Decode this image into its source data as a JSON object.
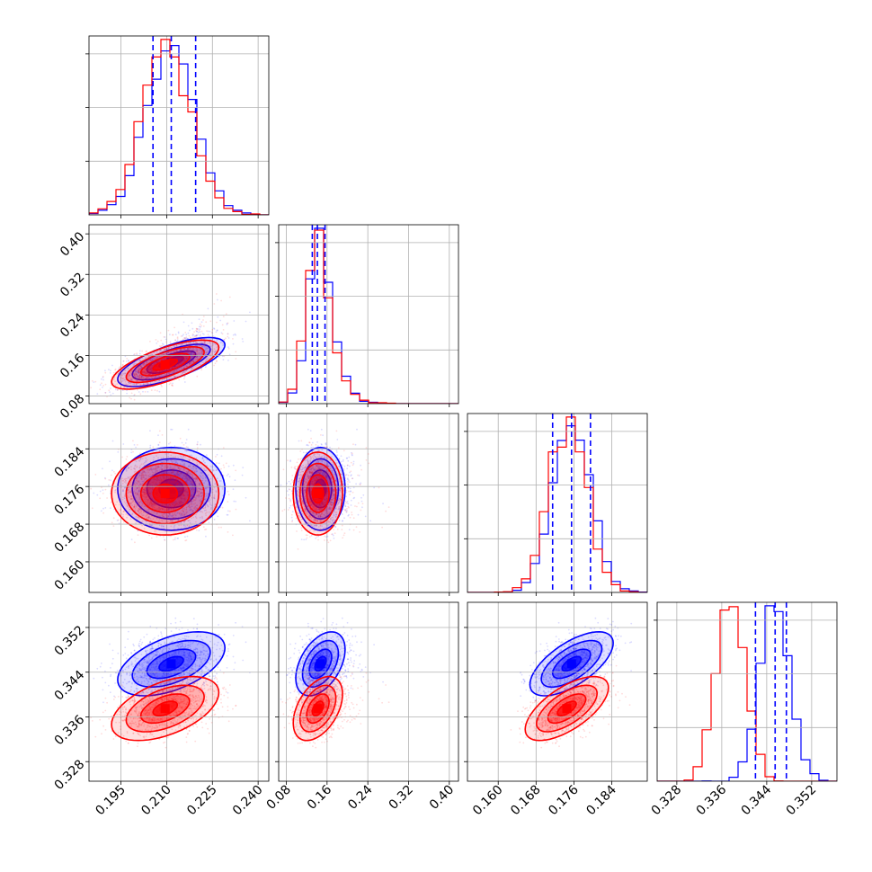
{
  "chart_data": {
    "type": "corner",
    "grid": true,
    "series": [
      {
        "name": "",
        "color": "#0000ff",
        "mean": [
          0.2115,
          0.147,
          0.1755,
          0.3455
        ],
        "sd": [
          0.008,
          0.022,
          0.004,
          0.0026
        ],
        "corr": {
          "1-0": 0.7,
          "2-0": 0.0,
          "2-1": 0.0,
          "3-0": 0.5,
          "3-1": 0.45,
          "3-2": 0.65
        },
        "quantiles": [
          [
            0.2055,
            0.2115,
            0.2195
          ],
          [
            0.131,
            0.141,
            0.156
          ],
          [
            0.1715,
            0.1755,
            0.1795
          ],
          [
            0.342,
            0.3455,
            0.3475
          ]
        ]
      },
      {
        "name": "",
        "color": "#ff0000",
        "mean": [
          0.2095,
          0.142,
          0.1745,
          0.3375
        ],
        "sd": [
          0.008,
          0.022,
          0.004,
          0.0026
        ],
        "corr": {
          "1-0": 0.7,
          "2-0": 0.0,
          "2-1": 0.0,
          "3-0": 0.5,
          "3-1": 0.45,
          "3-2": 0.65
        }
      }
    ],
    "quantile_series": 0,
    "ranges": [
      [
        0.1845,
        0.2435
      ],
      [
        0.065,
        0.418
      ],
      [
        0.1535,
        0.1915
      ],
      [
        0.3245,
        0.3565
      ]
    ],
    "ticks": [
      {
        "values": [
          0.195,
          0.21,
          0.225,
          0.24
        ],
        "labels": [
          "0.195",
          "0.210",
          "0.225",
          "0.240"
        ]
      },
      {
        "values": [
          0.08,
          0.16,
          0.24,
          0.32,
          0.4
        ],
        "labels": [
          "0.08",
          "0.16",
          "0.24",
          "0.32",
          "0.40"
        ]
      },
      {
        "values": [
          0.16,
          0.168,
          0.176,
          0.184
        ],
        "labels": [
          "0.160",
          "0.168",
          "0.176",
          "0.184"
        ]
      },
      {
        "values": [
          0.328,
          0.336,
          0.344,
          0.352
        ],
        "labels": [
          "0.328",
          "0.336",
          "0.344",
          "0.352"
        ]
      }
    ],
    "histogram_bins": 20
  }
}
